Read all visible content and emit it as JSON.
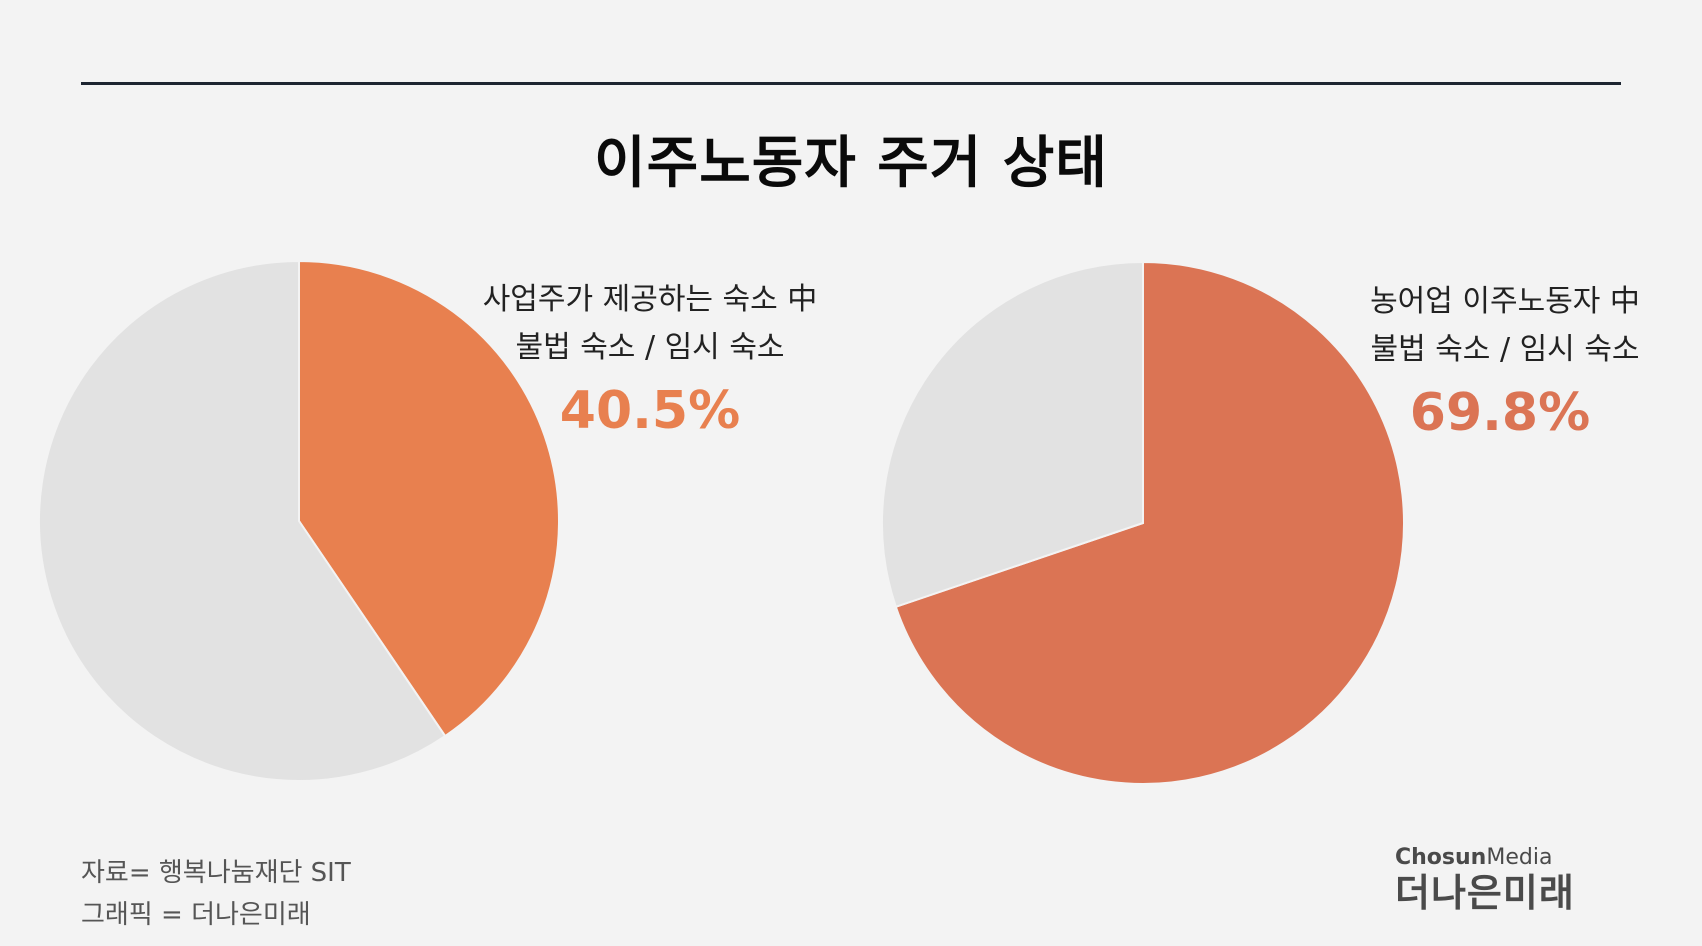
{
  "title": "이주노동자 주거 상태",
  "colors": {
    "background": "#f3f3f3",
    "rest": "#e2e2e2",
    "left_highlight": "#e8804f",
    "right_highlight": "#db7454"
  },
  "chart_data": [
    {
      "type": "pie",
      "caption_line1": "사업주가 제공하는 숙소 中",
      "caption_line2": "불법 숙소 / 임시 숙소",
      "value_label": "40.5%",
      "slices": [
        {
          "value": 40.5,
          "color": "#e8804f"
        },
        {
          "value": 59.5,
          "color": "#e2e2e2"
        }
      ]
    },
    {
      "type": "pie",
      "caption_line1": "농어업 이주노동자 中",
      "caption_line2": "불법 숙소 / 임시 숙소",
      "value_label": "69.8%",
      "slices": [
        {
          "value": 69.8,
          "color": "#db7454"
        },
        {
          "value": 30.2,
          "color": "#e2e2e2"
        }
      ]
    }
  ],
  "source": {
    "line1": "자료= 행복나눔재단 SIT",
    "line2": "그래픽 = 더나은미래"
  },
  "logo": {
    "chosun": "Chosun",
    "media": "Media",
    "name": "더나은미래"
  }
}
